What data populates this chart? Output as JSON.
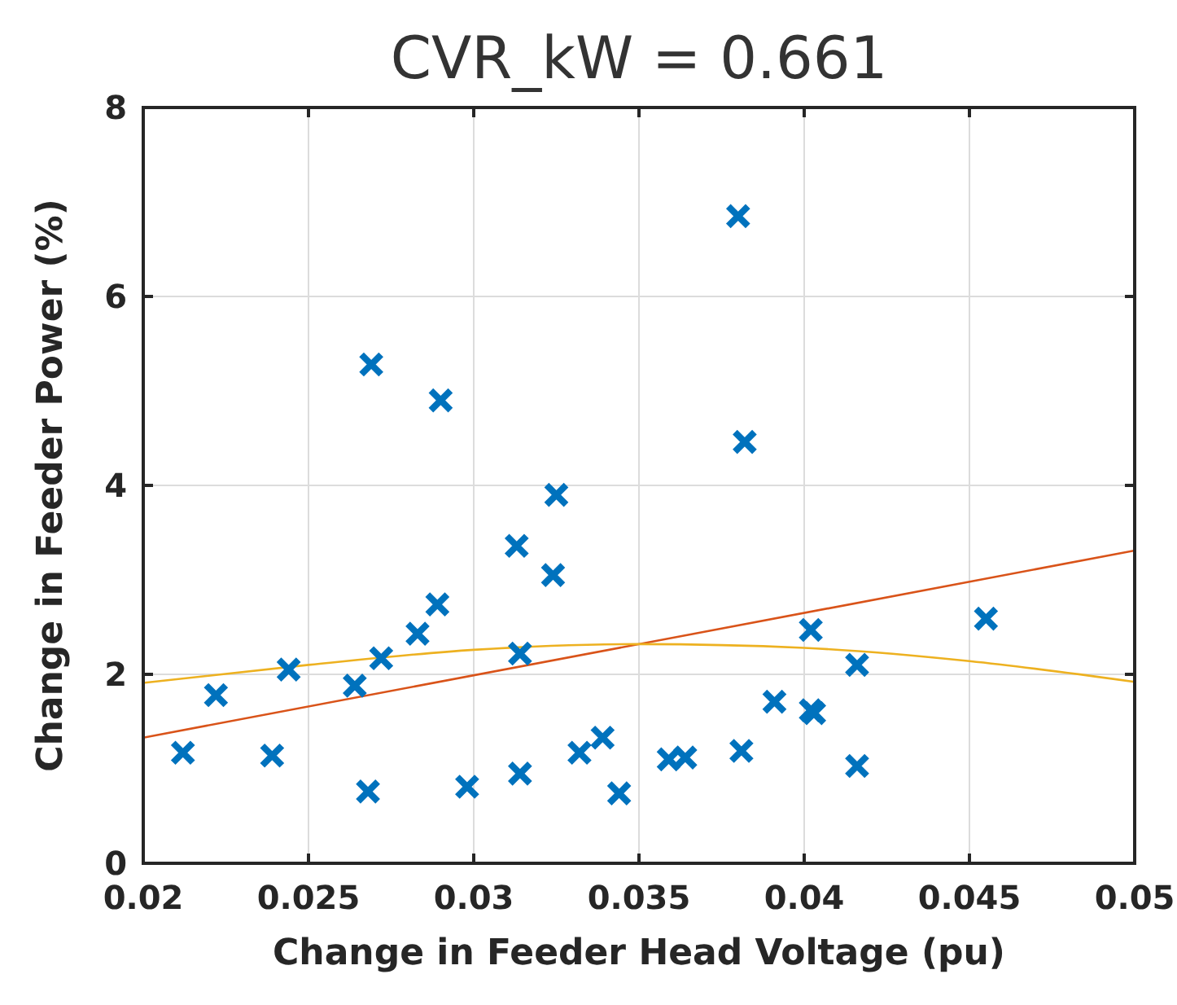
{
  "chart_data": {
    "type": "scatter",
    "title": "CVR_kW = 0.661",
    "xlabel": "Change in Feeder Head Voltage (pu)",
    "ylabel": "Change in Feeder Power (%)",
    "xlim": [
      0.02,
      0.05
    ],
    "xticks": [
      0.02,
      0.025,
      0.03,
      0.035,
      0.04,
      0.045,
      0.05
    ],
    "ylim": [
      0,
      8
    ],
    "yticks": [
      0,
      2,
      4,
      6,
      8
    ],
    "grid": true,
    "series": [
      {
        "marker": "cross",
        "color": "#0072bd",
        "x": [
          0.0212,
          0.0222,
          0.0239,
          0.0244,
          0.0264,
          0.0269,
          0.0268,
          0.0272,
          0.0283,
          0.0289,
          0.029,
          0.0298,
          0.0313,
          0.0314,
          0.0314,
          0.0324,
          0.0325,
          0.0332,
          0.0339,
          0.0344,
          0.0359,
          0.0364,
          0.038,
          0.0381,
          0.0382,
          0.0391,
          0.0402,
          0.0402,
          0.0403,
          0.0416,
          0.0416,
          0.0455
        ],
        "values": [
          1.17,
          1.78,
          1.14,
          2.05,
          1.88,
          5.28,
          0.76,
          2.17,
          2.43,
          2.74,
          4.9,
          0.81,
          3.36,
          0.95,
          2.22,
          3.05,
          3.9,
          1.17,
          1.33,
          0.74,
          1.1,
          1.12,
          6.85,
          1.19,
          4.46,
          1.71,
          2.47,
          1.62,
          1.59,
          1.03,
          2.1,
          2.59
        ]
      },
      {
        "type": "line",
        "color": "#d95319",
        "x": [
          0.02,
          0.05
        ],
        "values": [
          1.33,
          3.31
        ]
      },
      {
        "type": "line",
        "color": "#edb120",
        "x": [
          0.02,
          0.025,
          0.03,
          0.035,
          0.04,
          0.045,
          0.05
        ],
        "values": [
          1.91,
          2.1,
          2.26,
          2.32,
          2.28,
          2.14,
          1.92
        ]
      }
    ]
  }
}
